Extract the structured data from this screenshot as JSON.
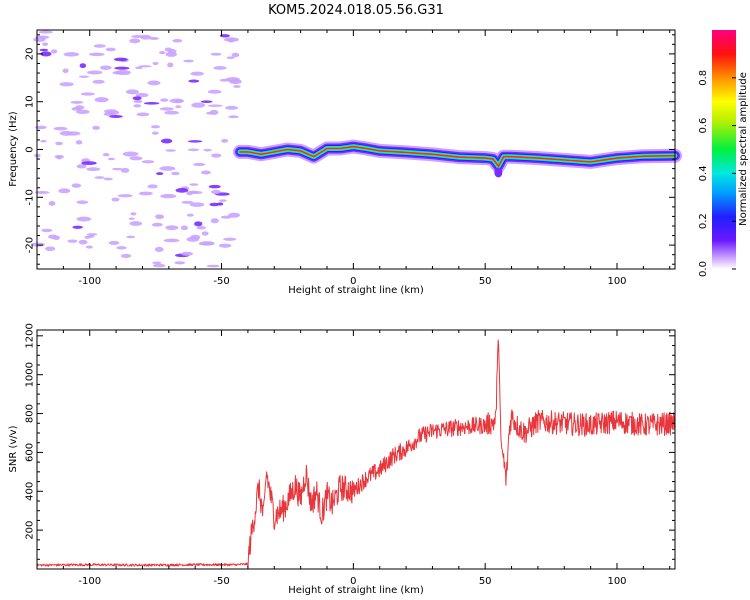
{
  "title": "KOM5.2024.018.05.56.G31",
  "chart_data": [
    {
      "type": "heatmap",
      "xlabel": "Height of straight line (km)",
      "ylabel": "Frequency (Hz)",
      "xlim": [
        -120,
        122
      ],
      "ylim": [
        -25,
        25
      ],
      "xticks": [
        -100,
        -50,
        0,
        50,
        100
      ],
      "yticks": [
        -20,
        -10,
        0,
        10,
        20
      ],
      "noise_region_x": [
        -120,
        -44
      ],
      "signal_track": {
        "x": [
          -43,
          -40,
          -35,
          -30,
          -25,
          -20,
          -15,
          -10,
          -5,
          0,
          5,
          10,
          20,
          30,
          40,
          50,
          53,
          55,
          57,
          60,
          70,
          80,
          90,
          100,
          110,
          122
        ],
        "y": [
          -0.5,
          -0.5,
          -1.0,
          -0.5,
          0.0,
          -0.3,
          -1.5,
          0.2,
          0.2,
          0.6,
          0.2,
          -0.3,
          -0.6,
          -1.0,
          -1.6,
          -1.8,
          -2.0,
          -3.5,
          -1.5,
          -1.5,
          -1.8,
          -2.2,
          -2.6,
          -1.8,
          -1.4,
          -1.3
        ]
      }
    },
    {
      "type": "colorbar",
      "label": "Normalized spectral amplitude",
      "range": [
        0,
        1
      ],
      "ticks": [
        "0.0",
        "0.2",
        "0.4",
        "0.6",
        "0.8"
      ],
      "tick_values": [
        0.0,
        0.2,
        0.4,
        0.6,
        0.8
      ]
    },
    {
      "type": "line",
      "xlabel": "Height of straight line (km)",
      "ylabel": "SNR (v/v)",
      "xlim": [
        -120,
        122
      ],
      "ylim": [
        0,
        1230
      ],
      "xticks": [
        -100,
        -50,
        0,
        50,
        100
      ],
      "yticks": [
        200,
        400,
        600,
        800,
        1000,
        1200
      ],
      "series": [
        {
          "color": "#e8373c",
          "x": [
            -120,
            -100,
            -80,
            -60,
            -45,
            -40,
            -39,
            -37,
            -36,
            -34,
            -33,
            -30,
            -26,
            -22,
            -20,
            -18,
            -16,
            -14,
            -12,
            -10,
            -8,
            -5,
            -2,
            0,
            5,
            10,
            15,
            20,
            25,
            30,
            40,
            50,
            54,
            55,
            56,
            57,
            58,
            59,
            60,
            62,
            65,
            70,
            80,
            90,
            100,
            110,
            122
          ],
          "y": [
            20,
            22,
            20,
            22,
            22,
            25,
            150,
            320,
            420,
            260,
            500,
            270,
            320,
            430,
            360,
            500,
            330,
            400,
            280,
            380,
            330,
            420,
            410,
            400,
            470,
            510,
            580,
            620,
            680,
            710,
            730,
            740,
            760,
            1220,
            650,
            560,
            450,
            700,
            790,
            740,
            700,
            760,
            750,
            740,
            760,
            740,
            750
          ]
        }
      ]
    }
  ]
}
